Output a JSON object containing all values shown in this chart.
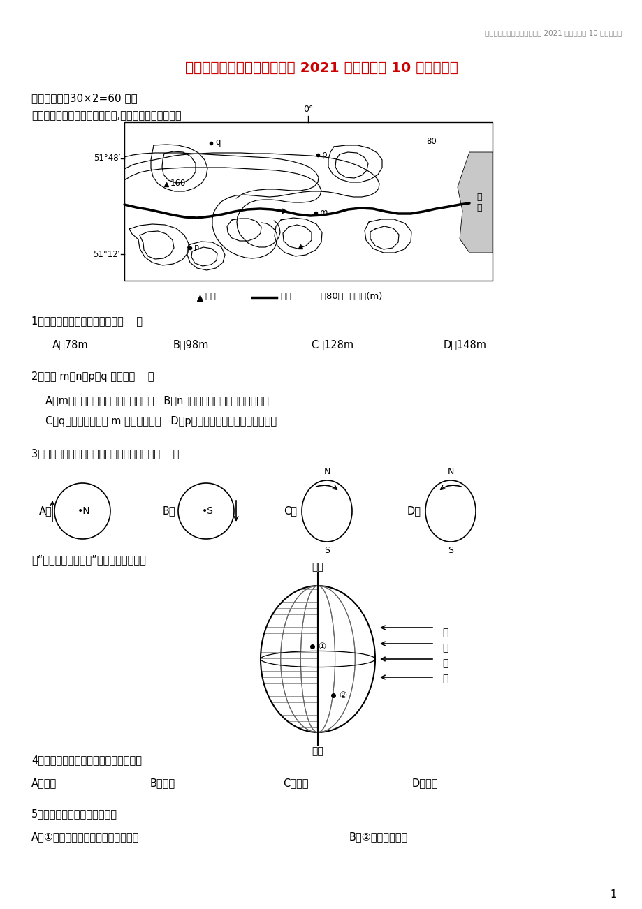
{
  "page_header": "江苏省淮安市涟水县第一中学 2021 届高三地理 10 月月考试题",
  "title": "江苏省淮安市涟水县第一中学 2021 届高三地理 10 月月考试题",
  "section1": "一、单选题（30×2=60 分）",
  "intro1": "下图为世界某区域等高线地形图,读图，完成下面小题。",
  "q1": "1．图示区域内河流落差可能是（    ）",
  "q1_opts": [
    "A．78m",
    "B．98m",
    "C．128m",
    "D．148m"
  ],
  "q2": "2．图中 m、n、p、q 四地中（    ）",
  "q2_opts": [
    "A．m地位于阴坡，坡度较其他三地陡   B．n地位于鞍部，地势较其他三地高",
    "C．q地位于山谷，在 m 地的东北方向   D．p地位于山脊，处于盛行风迎风坡"
  ],
  "q3": "3．下图中既能表示地球正确的自转方向的是（    ）",
  "intro2": "读「太阳和光照示意图」，完成下面小题。",
  "q4": "4．当太阳光照如图时，所表示的节气是",
  "q4_opts": [
    "A．春分",
    "B．夏至",
    "C．秋分",
    "D．冬至"
  ],
  "q5": "5．关于右图的叙述，错误的是",
  "q5_opts": [
    "A．①地所在的纬线周长约为４万千米",
    "B．②地位于南半球"
  ],
  "bg_color": "#ffffff",
  "text_color": "#000000",
  "title_color": "#cc0000",
  "header_color": "#888888",
  "page_num": "1"
}
